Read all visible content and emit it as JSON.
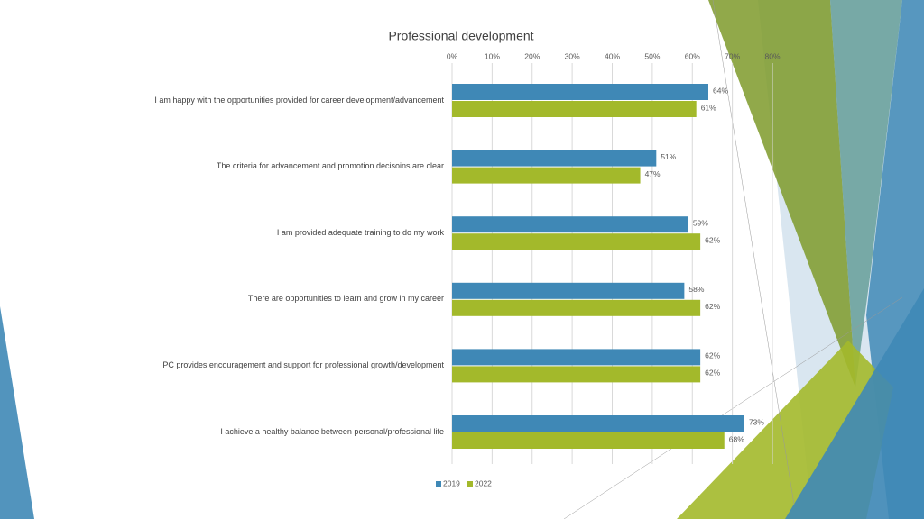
{
  "chart_data": {
    "type": "bar",
    "orientation": "horizontal",
    "title": "Professional development",
    "categories": [
      "I am happy with the opportunities provided for career development/advancement",
      "The criteria for advancement and promotion decisoins are clear",
      "I am provided adequate training to do my work",
      "There are opportunities to learn and grow in my career",
      "PC provides encouragement and support for professional growth/development",
      "I achieve a healthy balance between personal/professional life"
    ],
    "series": [
      {
        "name": "2019",
        "color": "#3f88b6",
        "values": [
          64,
          51,
          59,
          58,
          62,
          73
        ],
        "value_labels": [
          "64%",
          "51%",
          "59%",
          "58%",
          "62%",
          "73%"
        ]
      },
      {
        "name": "2022",
        "color": "#a3b92b",
        "values": [
          61,
          47,
          62,
          62,
          62,
          68
        ],
        "value_labels": [
          "61%",
          "47%",
          "62%",
          "62%",
          "62%",
          "68%"
        ]
      }
    ],
    "xlim": [
      0,
      80
    ],
    "xticks": [
      {
        "value": 0,
        "label": "0%"
      },
      {
        "value": 10,
        "label": "10%"
      },
      {
        "value": 20,
        "label": "20%"
      },
      {
        "value": 30,
        "label": "30%"
      },
      {
        "value": 40,
        "label": "40%"
      },
      {
        "value": 50,
        "label": "50%"
      },
      {
        "value": 60,
        "label": "60%"
      },
      {
        "value": 70,
        "label": "70%"
      },
      {
        "value": 80,
        "label": "80%"
      }
    ],
    "grid": true,
    "legend": "bottom"
  }
}
